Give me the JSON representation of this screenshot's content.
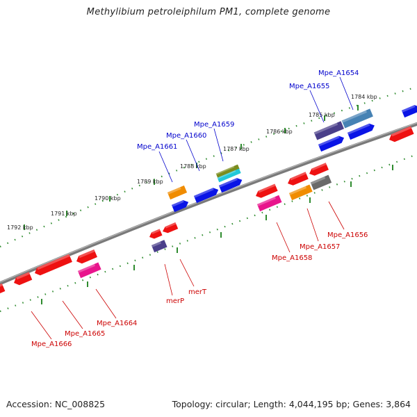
{
  "title": "Methylibium petroleiphilum PM1, complete genome",
  "footer": {
    "accession": "Accession: NC_008825",
    "summary": "Topology: circular; Length: 4,044,195 bp; Genes: 3,864"
  },
  "colors": {
    "forward_label": "#0000cc",
    "reverse_label": "#cc0000",
    "backbone": "#808080",
    "forward_tick": "#2e8b2e",
    "reverse_tick": "#2e8b2e"
  },
  "scale_ticks": [
    {
      "label": "1784 kbp"
    },
    {
      "label": "1785 kbp"
    },
    {
      "label": "1786 kbp"
    },
    {
      "label": "1787 kbp"
    },
    {
      "label": "1788 kbp"
    },
    {
      "label": "1789 kbp"
    },
    {
      "label": "1790 kbp"
    },
    {
      "label": "1791 kbp"
    },
    {
      "label": "1792 kbp"
    }
  ],
  "gene_labels": [
    {
      "text": "Mpe_A1654",
      "strand": "forward"
    },
    {
      "text": "Mpe_A1655",
      "strand": "forward"
    },
    {
      "text": "Mpe_A1659",
      "strand": "forward"
    },
    {
      "text": "Mpe_A1660",
      "strand": "forward"
    },
    {
      "text": "Mpe_A1661",
      "strand": "forward"
    },
    {
      "text": "Mpe_A1656",
      "strand": "reverse"
    },
    {
      "text": "Mpe_A1657",
      "strand": "reverse"
    },
    {
      "text": "Mpe_A1658",
      "strand": "reverse"
    },
    {
      "text": "merT",
      "strand": "reverse"
    },
    {
      "text": "merP",
      "strand": "reverse"
    },
    {
      "text": "Mpe_A1664",
      "strand": "reverse"
    },
    {
      "text": "Mpe_A1665",
      "strand": "reverse"
    },
    {
      "text": "Mpe_A1666",
      "strand": "reverse"
    }
  ],
  "feature_colors": {
    "red": "#ee1111",
    "blue": "#0a14e6",
    "orange": "#f08c00",
    "navy": "#4a3f8a",
    "steel": "#4682b4",
    "olive": "#7a8c1e",
    "cyan": "#22c8d8",
    "gray": "#6a6a6a",
    "pink": "#e8158c"
  }
}
